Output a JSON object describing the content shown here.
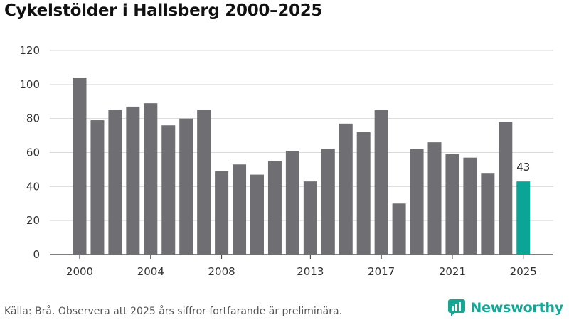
{
  "title": "Cykelstölder i Hallsberg 2000–2025",
  "footer": {
    "source_text": "Källa: Brå. Observera att 2025 års siffror fortfarande är preliminära."
  },
  "brand": {
    "name": "Newsworthy",
    "icon": "newsworthy-logo-icon"
  },
  "colors": {
    "bar": "#6f6e73",
    "highlight": "#0aa596",
    "grid": "#d9d9d9",
    "axis": "#333333"
  },
  "chart_data": {
    "type": "bar",
    "title": "Cykelstölder i Hallsberg 2000–2025",
    "xlabel": "",
    "ylabel": "",
    "ylim": [
      0,
      120
    ],
    "yticks": [
      "0",
      "20",
      "40",
      "60",
      "80",
      "100",
      "120"
    ],
    "xtick_labels": [
      "2000",
      "2004",
      "2008",
      "2013",
      "2017",
      "2021",
      "2025"
    ],
    "categories": [
      2000,
      2001,
      2002,
      2003,
      2004,
      2005,
      2006,
      2007,
      2008,
      2009,
      2010,
      2011,
      2012,
      2013,
      2014,
      2015,
      2016,
      2017,
      2018,
      2019,
      2020,
      2021,
      2022,
      2023,
      2024,
      2025
    ],
    "values": [
      104,
      79,
      85,
      87,
      89,
      76,
      80,
      85,
      49,
      53,
      47,
      55,
      61,
      43,
      62,
      77,
      72,
      85,
      30,
      62,
      66,
      59,
      57,
      48,
      78,
      43
    ],
    "highlight_category": 2025,
    "highlight_label": "43",
    "grid": true,
    "legend": "none"
  }
}
